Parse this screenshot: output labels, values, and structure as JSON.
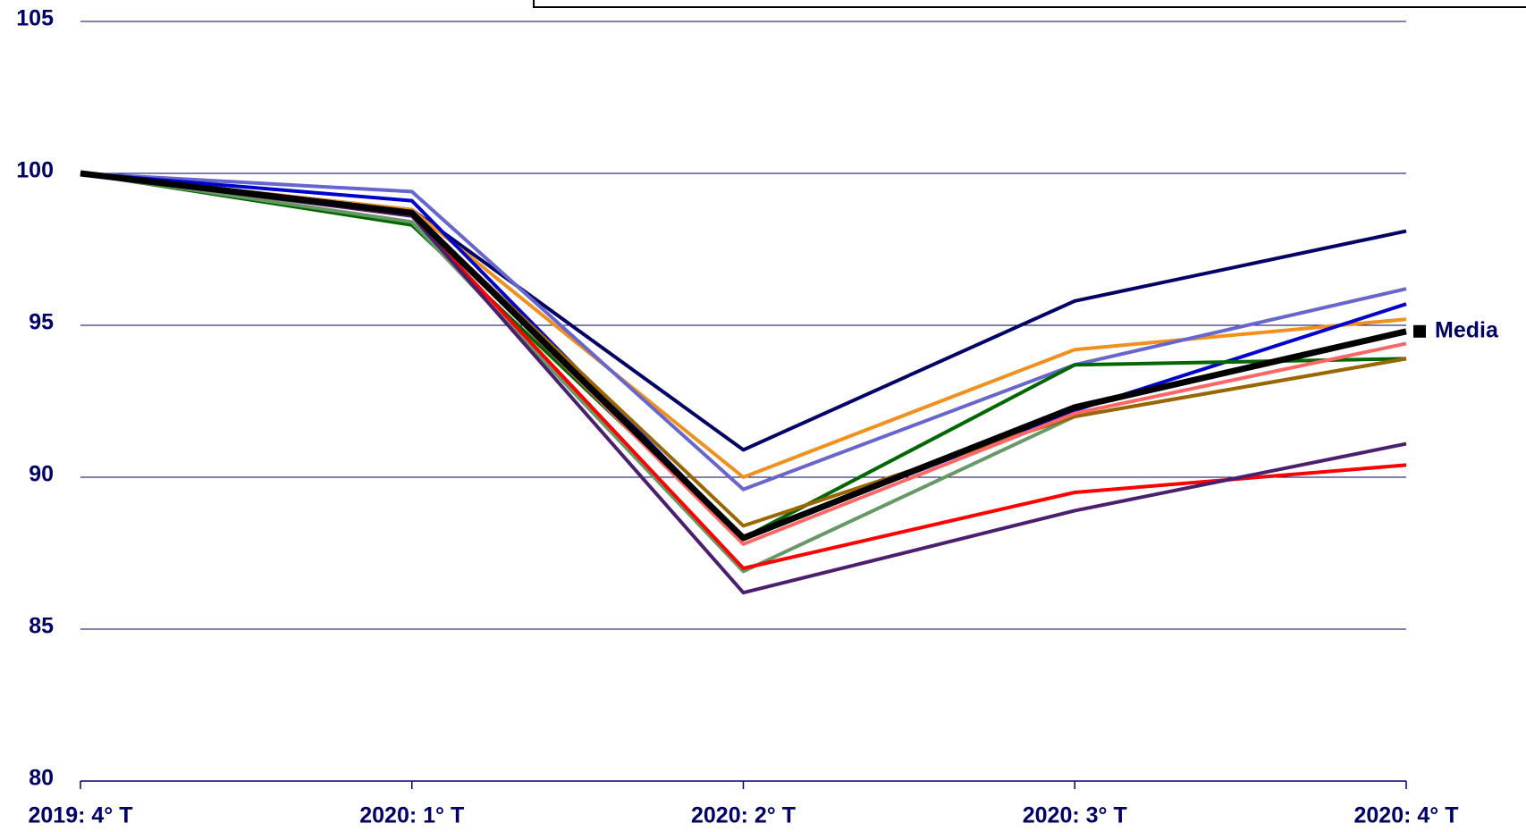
{
  "chart_data": {
    "type": "line",
    "categories": [
      "2019: 4° T",
      "2020: 1° T",
      "2020: 2° T",
      "2020: 3° T",
      "2020: 4° T"
    ],
    "series": [
      {
        "color": "#000066",
        "values": [
          100,
          98.8,
          90.9,
          95.8,
          98.1
        ]
      },
      {
        "color": "#f0901e",
        "values": [
          100,
          98.8,
          90.0,
          94.2,
          95.2
        ]
      },
      {
        "color": "#6666cc",
        "values": [
          100,
          99.4,
          89.6,
          93.7,
          96.2
        ]
      },
      {
        "color": "#0000cc",
        "values": [
          100,
          99.1,
          88.0,
          92.2,
          95.7
        ]
      },
      {
        "color": "#006600",
        "values": [
          100,
          98.3,
          88.0,
          93.7,
          93.9
        ]
      },
      {
        "color": "#669966",
        "values": [
          100,
          98.4,
          86.9,
          92.0,
          93.9
        ]
      },
      {
        "color": "#996600",
        "values": [
          100,
          98.7,
          88.4,
          92.0,
          93.9
        ]
      },
      {
        "color": "#ff6666",
        "values": [
          100,
          98.7,
          87.8,
          92.1,
          94.4
        ]
      },
      {
        "color": "#ff0000",
        "values": [
          100,
          98.6,
          87.0,
          89.5,
          90.4
        ]
      },
      {
        "color": "#4b1e6e",
        "values": [
          100,
          98.6,
          86.2,
          88.9,
          91.1
        ]
      },
      {
        "name": "Media",
        "color": "#000000",
        "values": [
          100,
          98.7,
          88.0,
          92.3,
          94.8
        ]
      }
    ],
    "ylim": [
      80,
      105
    ],
    "yticks": [
      80,
      85,
      90,
      95,
      100,
      105
    ],
    "grid": true
  }
}
